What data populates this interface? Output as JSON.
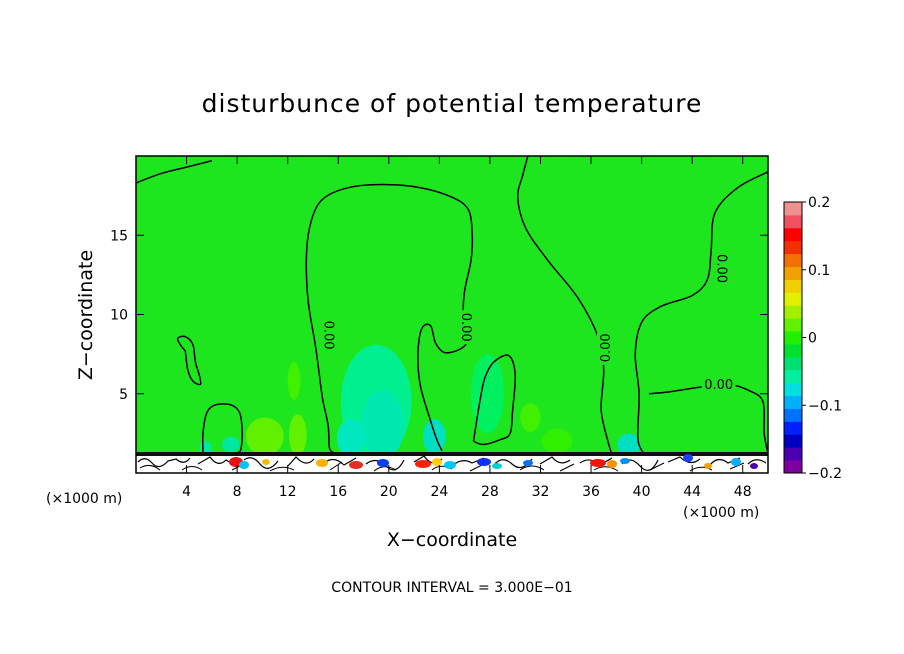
{
  "chart_data": {
    "type": "contour",
    "title": "disturbunce of potential temperature",
    "xlabel": "X−coordinate",
    "ylabel": "Z−coordinate",
    "x_unit": "(×1000 m)",
    "x_unit_right": "(×1000 m)",
    "xlim": [
      0,
      50
    ],
    "ylim": [
      0,
      20
    ],
    "x_ticks": [
      4,
      8,
      12,
      16,
      20,
      24,
      28,
      32,
      36,
      40,
      44,
      48
    ],
    "y_ticks": [
      5,
      10,
      15
    ],
    "colorbar": {
      "min": -0.2,
      "max": 0.2,
      "ticks": [
        {
          "value": 0.2,
          "label": "0.2"
        },
        {
          "value": 0.1,
          "label": "0.1"
        },
        {
          "value": 0.0,
          "label": "0"
        },
        {
          "value": -0.1,
          "label": "−0.1"
        },
        {
          "value": -0.2,
          "label": "−0.2"
        }
      ],
      "colors": [
        "#8000a0",
        "#4a00b0",
        "#0000c0",
        "#0020ff",
        "#0070ff",
        "#00b0ff",
        "#00e0e0",
        "#00f0a0",
        "#00e070",
        "#00e030",
        "#20f000",
        "#60f000",
        "#a0f000",
        "#e0f000",
        "#f0d000",
        "#f0a000",
        "#f07000",
        "#f03000",
        "#ff0000",
        "#f05060",
        "#f09090"
      ]
    },
    "contour_interval_note": "CONTOUR INTERVAL = 3.000E−01",
    "contour_labels": [
      {
        "text": "0.00",
        "x": 15.3,
        "z": 8.7,
        "rotate": 90
      },
      {
        "text": "0.00",
        "x": 26.2,
        "z": 9.2,
        "rotate": 90
      },
      {
        "text": "0.00",
        "x": 37.1,
        "z": 7.9,
        "rotate": -90
      },
      {
        "text": "0.00",
        "x": 46.4,
        "z": 12.9,
        "rotate": 90
      },
      {
        "text": "0.00",
        "x": 46.1,
        "z": 5.6,
        "rotate": 0
      }
    ],
    "contours": [
      {
        "name": "top-left",
        "points": [
          [
            0,
            18.3
          ],
          [
            2,
            18.9
          ],
          [
            4,
            19.3
          ],
          [
            6,
            19.7
          ]
        ]
      },
      {
        "name": "central-dome",
        "points": [
          [
            14.6,
            5.6
          ],
          [
            14.2,
            8
          ],
          [
            13.6,
            11
          ],
          [
            13.5,
            14
          ],
          [
            13.9,
            16
          ],
          [
            14.8,
            17.3
          ],
          [
            16.8,
            18
          ],
          [
            19.5,
            18.2
          ],
          [
            22.5,
            18
          ],
          [
            25,
            17.4
          ],
          [
            26.3,
            16.6
          ],
          [
            26.6,
            15
          ],
          [
            26.5,
            13.4
          ],
          [
            26,
            11.5
          ],
          [
            25.9,
            10
          ],
          [
            26.2,
            8.4
          ],
          [
            25.6,
            7.8
          ],
          [
            24.4,
            7.6
          ],
          [
            23.7,
            8.2
          ],
          [
            23.3,
            9.3
          ],
          [
            22.6,
            9.1
          ],
          [
            22.3,
            7.5
          ],
          [
            22.5,
            5.5
          ],
          [
            23.3,
            3.3
          ],
          [
            23.8,
            2.1
          ],
          [
            24.2,
            1.4
          ]
        ]
      },
      {
        "name": "left-bottom-contact",
        "points": [
          [
            14.6,
            5.6
          ],
          [
            14.8,
            4.5
          ],
          [
            15.2,
            3
          ],
          [
            15.3,
            1.6
          ],
          [
            15.6,
            1.3
          ]
        ]
      },
      {
        "name": "right-descending",
        "points": [
          [
            31,
            20
          ],
          [
            30.6,
            18.8
          ],
          [
            30.2,
            17.4
          ],
          [
            30.8,
            15.5
          ],
          [
            32.5,
            13.5
          ],
          [
            35,
            11
          ],
          [
            36.6,
            8.5
          ],
          [
            37,
            6.5
          ],
          [
            36.8,
            4
          ],
          [
            37.3,
            2.1
          ],
          [
            37.6,
            1.3
          ]
        ]
      },
      {
        "name": "right-dome",
        "points": [
          [
            50,
            19
          ],
          [
            47.6,
            18
          ],
          [
            45.8,
            16.4
          ],
          [
            45.5,
            14
          ],
          [
            45.2,
            12.2
          ],
          [
            44,
            11.2
          ],
          [
            41.5,
            10.5
          ],
          [
            40,
            9.5
          ],
          [
            39.5,
            7.5
          ],
          [
            39.8,
            5
          ],
          [
            39.7,
            2.2
          ],
          [
            40.1,
            1.3
          ]
        ]
      },
      {
        "name": "right-inner",
        "points": [
          [
            50,
            1.2
          ],
          [
            49.7,
            2.5
          ],
          [
            49.6,
            4.5
          ],
          [
            48.5,
            5.2
          ],
          [
            46.8,
            5.6
          ],
          [
            44.5,
            5.4
          ],
          [
            42,
            5.1
          ],
          [
            40.6,
            5
          ]
        ]
      },
      {
        "name": "small-loop-left",
        "points": [
          [
            3.9,
            7.7
          ],
          [
            3.5,
            8.1
          ],
          [
            3.3,
            8.5
          ],
          [
            3.9,
            8.6
          ],
          [
            4.5,
            8.1
          ],
          [
            4.7,
            7
          ],
          [
            5,
            6.2
          ],
          [
            5.1,
            5.6
          ],
          [
            4.5,
            5.8
          ],
          [
            4.1,
            6.5
          ],
          [
            3.9,
            7.7
          ]
        ]
      },
      {
        "name": "small-loop-bottom-left",
        "points": [
          [
            5.3,
            1.3
          ],
          [
            5.3,
            2.5
          ],
          [
            5.6,
            3.8
          ],
          [
            6.3,
            4.3
          ],
          [
            7.5,
            4.3
          ],
          [
            8.2,
            3.8
          ],
          [
            8.4,
            2.6
          ],
          [
            8.3,
            1.5
          ],
          [
            8.1,
            1.3
          ]
        ]
      },
      {
        "name": "small-loop-mid",
        "points": [
          [
            26.7,
            2
          ],
          [
            27.2,
            4.5
          ],
          [
            27.6,
            6
          ],
          [
            28.3,
            7
          ],
          [
            29.5,
            7.4
          ],
          [
            30,
            6.2
          ],
          [
            29.8,
            4
          ],
          [
            29.6,
            2.5
          ],
          [
            28.8,
            2.1
          ],
          [
            27.5,
            1.8
          ],
          [
            26.7,
            2
          ]
        ]
      }
    ],
    "blobs": [
      {
        "x": 19,
        "z": 4.5,
        "rx": 2.8,
        "rz": 3.6,
        "color": "#00f090"
      },
      {
        "x": 19.5,
        "z": 3,
        "rx": 1.7,
        "rz": 2.2,
        "color": "#00e8b0"
      },
      {
        "x": 17,
        "z": 2.2,
        "rx": 1.1,
        "rz": 1.2,
        "color": "#00e8c0"
      },
      {
        "x": 23.6,
        "z": 2.3,
        "rx": 0.9,
        "rz": 1.1,
        "color": "#00e0c0"
      },
      {
        "x": 10.2,
        "z": 2.3,
        "rx": 1.5,
        "rz": 1.2,
        "color": "#60f000"
      },
      {
        "x": 12.8,
        "z": 2.4,
        "rx": 0.7,
        "rz": 1.3,
        "color": "#60f000"
      },
      {
        "x": 12.5,
        "z": 5.8,
        "rx": 0.5,
        "rz": 1.2,
        "color": "#40f000"
      },
      {
        "x": 31.2,
        "z": 3.5,
        "rx": 0.8,
        "rz": 0.9,
        "color": "#40f000"
      },
      {
        "x": 33.3,
        "z": 2,
        "rx": 1.2,
        "rz": 0.8,
        "color": "#30f000"
      },
      {
        "x": 39,
        "z": 1.8,
        "rx": 0.9,
        "rz": 0.7,
        "color": "#00e0c0"
      },
      {
        "x": 7.5,
        "z": 1.8,
        "rx": 0.7,
        "rz": 0.5,
        "color": "#00e8a0"
      },
      {
        "x": 5.5,
        "z": 1.6,
        "rx": 0.5,
        "rz": 0.4,
        "color": "#00e8a0"
      },
      {
        "x": 27.8,
        "z": 5,
        "rx": 1.3,
        "rz": 2.5,
        "color": "#00f060"
      }
    ]
  }
}
